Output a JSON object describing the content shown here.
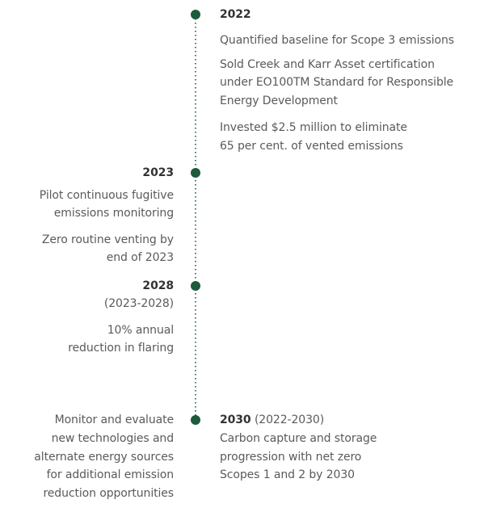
{
  "milestones": [
    {
      "year": "2022",
      "items": [
        [
          "Quantified baseline for Scope 3 emissions"
        ],
        [
          "Sold Creek and Karr Asset certification",
          "under EO100TM Standard for Responsible",
          "Energy Development"
        ],
        [
          "Invested $2.5 million to eliminate",
          "65 per cent. of vented emissions"
        ]
      ]
    },
    {
      "year": "2023",
      "items": [
        [
          "Pilot continuous fugitive",
          "emissions monitoring"
        ],
        [
          "Zero routine venting by",
          "end of 2023"
        ]
      ]
    },
    {
      "year": "2028",
      "period": "(2023-2028)",
      "items": [
        [
          "10% annual",
          "reduction in flaring"
        ]
      ]
    },
    {
      "year": "2030",
      "period": "(2022-2030)",
      "items": [
        [
          "Carbon capture and storage",
          "progression with net zero",
          "Scopes 1 and 2 by 2030"
        ]
      ],
      "side_items": [
        [
          "Monitor and evaluate",
          "new technologies and",
          "alternate energy sources",
          "for additional emission",
          "reduction opportunities"
        ]
      ]
    }
  ]
}
